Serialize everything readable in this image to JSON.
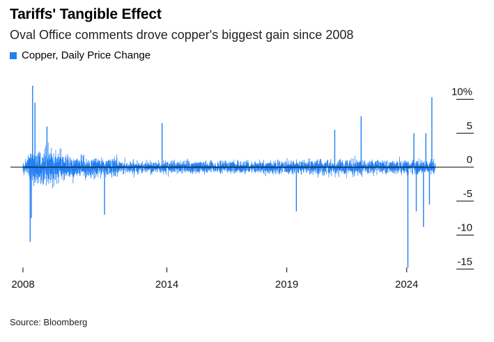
{
  "title": "Tariffs' Tangible Effect",
  "subtitle": "Oval Office comments drove copper's biggest gain since 2008",
  "source": "Source: Bloomberg",
  "colors": {
    "series": "#1f7ef2",
    "axis": "#000000",
    "text": "#111111"
  },
  "chart_data": {
    "type": "bar",
    "series": [
      {
        "name": "Copper, Daily Price Change",
        "unit": "%",
        "x_start": 2008.0,
        "x_end": 2025.2
      }
    ],
    "xlim": [
      2008,
      2025.2
    ],
    "ylim": [
      -15,
      10
    ],
    "x_ticks": [
      {
        "value": 2008,
        "label": "2008"
      },
      {
        "value": 2014,
        "label": "2014"
      },
      {
        "value": 2019,
        "label": "2019"
      },
      {
        "value": 2024,
        "label": "2024"
      }
    ],
    "y_ticks": [
      {
        "value": 10,
        "label": "10%"
      },
      {
        "value": 5,
        "label": "5"
      },
      {
        "value": 0,
        "label": "0"
      },
      {
        "value": -5,
        "label": "-5"
      },
      {
        "value": -10,
        "label": "-10"
      },
      {
        "value": -15,
        "label": "-15"
      }
    ],
    "notable_points": [
      {
        "x": 2008.4,
        "y": 12.0
      },
      {
        "x": 2008.5,
        "y": 9.5
      },
      {
        "x": 2008.3,
        "y": -11.0
      },
      {
        "x": 2008.35,
        "y": -7.5
      },
      {
        "x": 2009.0,
        "y": 6.0
      },
      {
        "x": 2011.4,
        "y": -7.0
      },
      {
        "x": 2013.8,
        "y": 6.5
      },
      {
        "x": 2019.4,
        "y": -6.5
      },
      {
        "x": 2021.0,
        "y": 5.5
      },
      {
        "x": 2022.1,
        "y": 7.5
      },
      {
        "x": 2024.3,
        "y": 5.0
      },
      {
        "x": 2024.4,
        "y": -6.5
      },
      {
        "x": 2024.8,
        "y": 5.0
      },
      {
        "x": 2024.95,
        "y": -5.5
      },
      {
        "x": 2024.05,
        "y": -14.8
      },
      {
        "x": 2024.7,
        "y": -8.8
      },
      {
        "x": 2025.05,
        "y": 10.3
      }
    ],
    "grid": false,
    "legend": "top-left"
  }
}
